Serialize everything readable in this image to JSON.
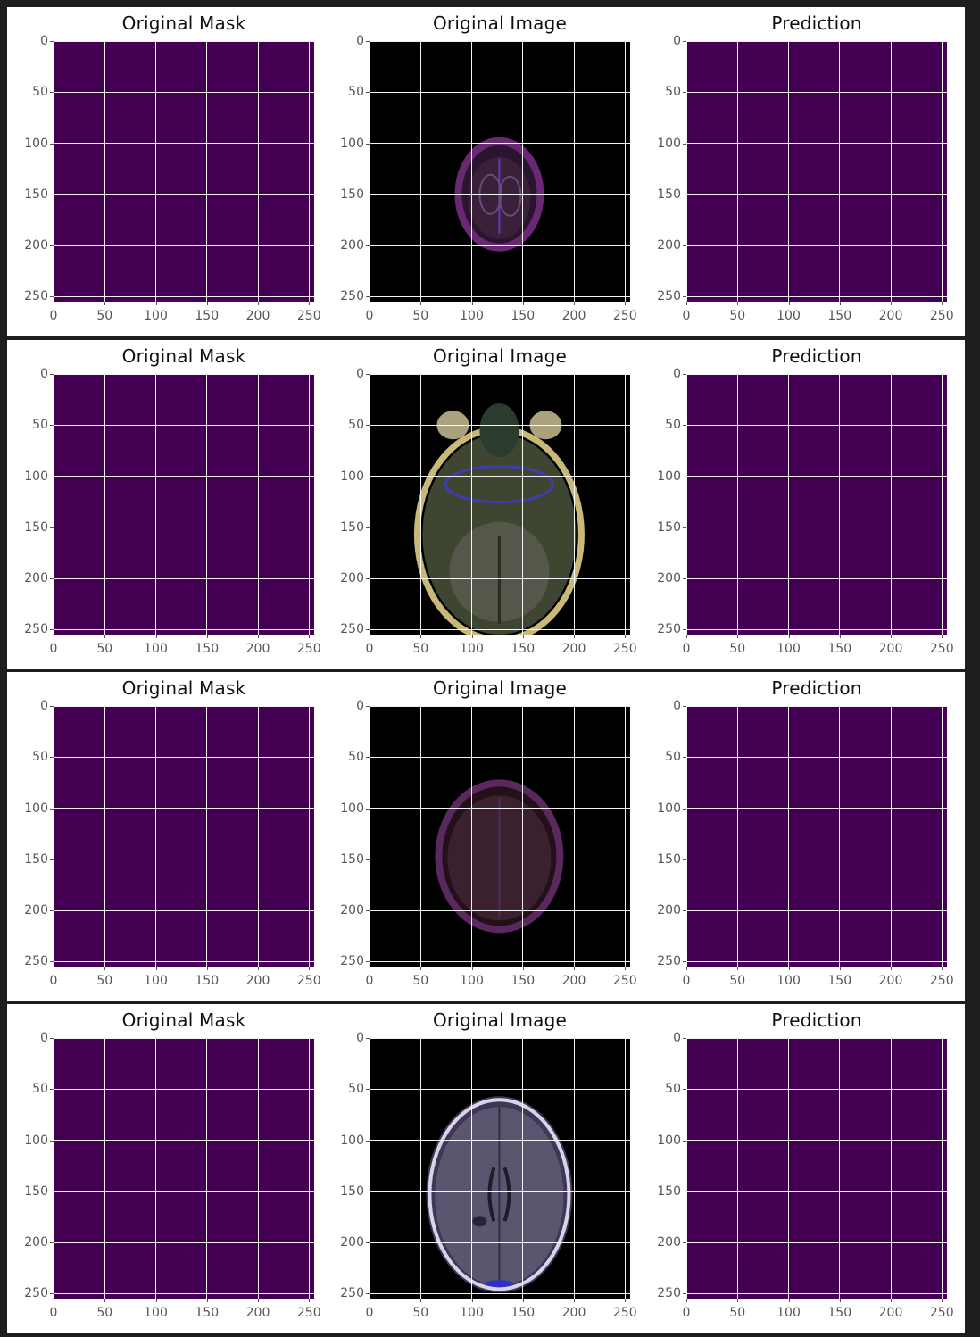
{
  "chart_data": {
    "type": "image-grid",
    "colors": {
      "mask_fill": "#440154",
      "image_background": "#000000",
      "grid": "#ffffff",
      "outer_background": "#1e1e1e"
    },
    "panel_titles": [
      "Original Mask",
      "Original Image",
      "Prediction"
    ],
    "axes": {
      "x_ticks": [
        "0",
        "50",
        "100",
        "150",
        "200",
        "250"
      ],
      "y_ticks": [
        "0",
        "50",
        "100",
        "150",
        "200",
        "250"
      ],
      "xlim": [
        0,
        255
      ],
      "ylim": [
        255,
        0
      ],
      "grid": true
    },
    "rows": [
      {
        "panels": [
          {
            "title": "Original Mask",
            "kind": "mask",
            "mask_value": 0
          },
          {
            "title": "Original Image",
            "kind": "mri",
            "slice": "upper-vertex"
          },
          {
            "title": "Prediction",
            "kind": "mask",
            "mask_value": 0
          }
        ]
      },
      {
        "panels": [
          {
            "title": "Original Mask",
            "kind": "mask",
            "mask_value": 0
          },
          {
            "title": "Original Image",
            "kind": "mri",
            "slice": "skull-base"
          },
          {
            "title": "Prediction",
            "kind": "mask",
            "mask_value": 0
          }
        ]
      },
      {
        "panels": [
          {
            "title": "Original Mask",
            "kind": "mask",
            "mask_value": 0
          },
          {
            "title": "Original Image",
            "kind": "mri",
            "slice": "upper-axial"
          },
          {
            "title": "Prediction",
            "kind": "mask",
            "mask_value": 0
          }
        ]
      },
      {
        "panels": [
          {
            "title": "Original Mask",
            "kind": "mask",
            "mask_value": 0
          },
          {
            "title": "Original Image",
            "kind": "mri",
            "slice": "mid-axial"
          },
          {
            "title": "Prediction",
            "kind": "mask",
            "mask_value": 0
          }
        ]
      }
    ]
  }
}
